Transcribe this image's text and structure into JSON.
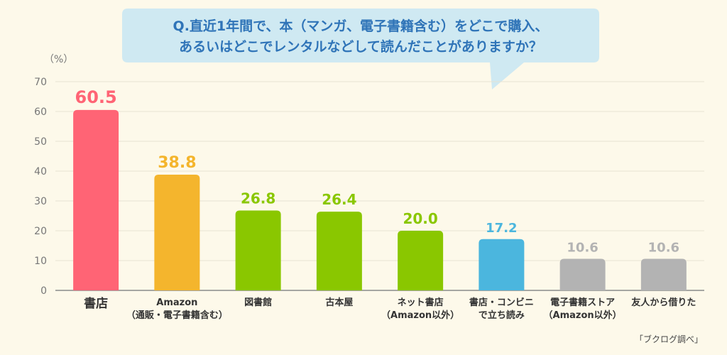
{
  "question": {
    "line1": "Q.直近1年間で、本（マンガ、電子書籍含む）をどこで購入、",
    "line2": "あるいはどこでレンタルなどして読んだことがありますか？"
  },
  "source": "「ブクログ調べ」",
  "chart_data": {
    "type": "bar",
    "ylabel": "（%）",
    "ylim": [
      0,
      70
    ],
    "yticks": [
      0,
      10,
      20,
      30,
      40,
      50,
      60,
      70
    ],
    "grid": true,
    "categories": [
      [
        "書店"
      ],
      [
        "Amazon",
        "（通販・電子書籍含む）"
      ],
      [
        "図書館"
      ],
      [
        "古本屋"
      ],
      [
        "ネット書店",
        "（Amazon以外）"
      ],
      [
        "書店・コンビニ",
        "で立ち読み"
      ],
      [
        "電子書籍ストア",
        "（Amazon以外）"
      ],
      [
        "友人から借りた"
      ]
    ],
    "values": [
      "60.5",
      "38.8",
      "26.8",
      "26.4",
      "20.0",
      "17.2",
      "10.6",
      "10.6"
    ],
    "colors": [
      "#ff6475",
      "#f4b52d",
      "#8ac700",
      "#8ac700",
      "#8ac700",
      "#4bb6de",
      "#b3b3b3",
      "#b3b3b3"
    ]
  }
}
